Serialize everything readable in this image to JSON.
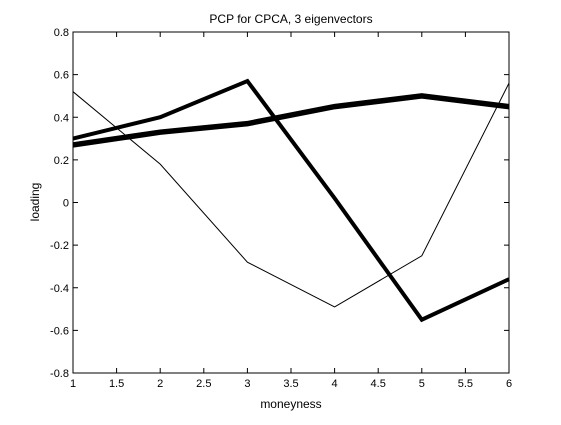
{
  "chart_data": {
    "type": "line",
    "title": "PCP for CPCA, 3 eigenvectors",
    "xlabel": "moneyness",
    "ylabel": "loading",
    "xlim": [
      1,
      6
    ],
    "ylim": [
      -0.8,
      0.8
    ],
    "grid": false,
    "legend": "none",
    "x": [
      1,
      2,
      3,
      4,
      5,
      6
    ],
    "xticks": [
      "1",
      "1.5",
      "2",
      "2.5",
      "3",
      "3.5",
      "4",
      "4.5",
      "5",
      "5.5",
      "6"
    ],
    "yticks": [
      "-0.8",
      "-0.6",
      "-0.4",
      "-0.2",
      "0",
      "0.2",
      "0.4",
      "0.6",
      "0.8"
    ],
    "series": [
      {
        "values": [
          0.52,
          0.18,
          -0.28,
          -0.49,
          -0.25,
          0.56
        ],
        "weight": "thin",
        "color": "#000000"
      },
      {
        "values": [
          0.3,
          0.4,
          0.57,
          0.02,
          -0.55,
          -0.36
        ],
        "weight": "thick",
        "color": "#000000"
      },
      {
        "values": [
          0.27,
          0.33,
          0.37,
          0.45,
          0.5,
          0.45
        ],
        "weight": "thickest",
        "color": "#000000"
      }
    ]
  }
}
